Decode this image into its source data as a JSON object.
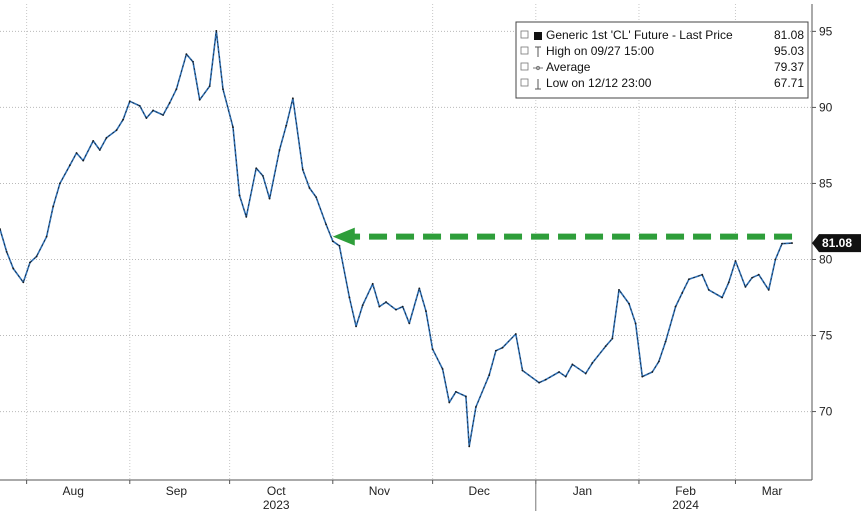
{
  "chart_data": {
    "type": "line",
    "series": [
      {
        "name": "Generic 1st 'CL' Future - Last Price",
        "color": "#2f6fb3",
        "x": [
          "2023-07-24",
          "2023-07-26",
          "2023-07-28",
          "2023-07-31",
          "2023-08-02",
          "2023-08-04",
          "2023-08-07",
          "2023-08-09",
          "2023-08-11",
          "2023-08-14",
          "2023-08-16",
          "2023-08-18",
          "2023-08-21",
          "2023-08-23",
          "2023-08-25",
          "2023-08-28",
          "2023-08-30",
          "2023-09-01",
          "2023-09-04",
          "2023-09-06",
          "2023-09-08",
          "2023-09-11",
          "2023-09-13",
          "2023-09-15",
          "2023-09-18",
          "2023-09-20",
          "2023-09-22",
          "2023-09-25",
          "2023-09-27",
          "2023-09-29",
          "2023-10-02",
          "2023-10-04",
          "2023-10-06",
          "2023-10-09",
          "2023-10-11",
          "2023-10-13",
          "2023-10-16",
          "2023-10-18",
          "2023-10-20",
          "2023-10-23",
          "2023-10-25",
          "2023-10-27",
          "2023-10-30",
          "2023-11-01",
          "2023-11-03",
          "2023-11-06",
          "2023-11-08",
          "2023-11-10",
          "2023-11-13",
          "2023-11-15",
          "2023-11-17",
          "2023-11-20",
          "2023-11-22",
          "2023-11-24",
          "2023-11-27",
          "2023-11-29",
          "2023-12-01",
          "2023-12-04",
          "2023-12-06",
          "2023-12-08",
          "2023-12-11",
          "2023-12-12",
          "2023-12-14",
          "2023-12-18",
          "2023-12-20",
          "2023-12-22",
          "2023-12-26",
          "2023-12-28",
          "2024-01-02",
          "2024-01-04",
          "2024-01-08",
          "2024-01-10",
          "2024-01-12",
          "2024-01-16",
          "2024-01-18",
          "2024-01-22",
          "2024-01-24",
          "2024-01-26",
          "2024-01-29",
          "2024-01-31",
          "2024-02-02",
          "2024-02-05",
          "2024-02-07",
          "2024-02-09",
          "2024-02-12",
          "2024-02-14",
          "2024-02-16",
          "2024-02-20",
          "2024-02-22",
          "2024-02-26",
          "2024-02-28",
          "2024-03-01",
          "2024-03-04",
          "2024-03-06",
          "2024-03-08",
          "2024-03-11",
          "2024-03-13",
          "2024-03-15",
          "2024-03-18"
        ],
        "values": [
          82.0,
          80.5,
          79.4,
          78.5,
          79.8,
          80.2,
          81.5,
          83.5,
          85.0,
          86.2,
          87.0,
          86.5,
          87.8,
          87.2,
          88.0,
          88.5,
          89.2,
          90.4,
          90.1,
          89.3,
          89.8,
          89.5,
          90.3,
          91.2,
          93.5,
          93.0,
          90.5,
          91.4,
          95.03,
          91.2,
          88.7,
          84.2,
          82.8,
          86.0,
          85.5,
          84.0,
          87.2,
          88.8,
          90.6,
          85.9,
          84.7,
          84.1,
          82.3,
          81.2,
          80.9,
          77.5,
          75.6,
          77.0,
          78.4,
          76.9,
          77.2,
          76.7,
          76.9,
          75.8,
          78.1,
          76.6,
          74.1,
          72.8,
          70.6,
          71.3,
          71.0,
          67.71,
          70.3,
          72.4,
          74.0,
          74.2,
          75.1,
          72.7,
          71.9,
          72.1,
          72.6,
          72.3,
          73.1,
          72.5,
          73.2,
          74.3,
          74.8,
          78.0,
          77.1,
          75.8,
          72.3,
          72.6,
          73.3,
          74.6,
          76.9,
          77.8,
          78.7,
          79.0,
          78.0,
          77.5,
          78.5,
          79.9,
          78.2,
          78.8,
          79.0,
          78.0,
          80.0,
          81.04,
          81.08
        ]
      }
    ],
    "average_value": 79.37,
    "yticks": [
      70,
      75,
      80,
      85,
      90,
      95
    ],
    "ylim": [
      65.5,
      96.8
    ],
    "xlim": [
      "2023-07-24",
      "2024-03-24"
    ],
    "month_ticks": [
      {
        "label": "Aug",
        "date": "2023-08-15"
      },
      {
        "label": "Sep",
        "date": "2023-09-15"
      },
      {
        "label": "Oct",
        "date": "2023-10-15"
      },
      {
        "label": "Nov",
        "date": "2023-11-15"
      },
      {
        "label": "Dec",
        "date": "2023-12-15"
      },
      {
        "label": "Jan",
        "date": "2024-01-15"
      },
      {
        "label": "Feb",
        "date": "2024-02-15"
      },
      {
        "label": "Mar",
        "date": "2024-03-12"
      }
    ],
    "year_labels": [
      {
        "label": "2023",
        "date": "2023-10-15"
      },
      {
        "label": "2024",
        "date": "2024-02-15"
      }
    ],
    "year_divider": "2024-01-01",
    "legend": {
      "placement": "top-right",
      "entries": [
        {
          "label": "Generic 1st 'CL' Future - Last Price",
          "value": "81.08",
          "marker": "square-icon"
        },
        {
          "label": "High on 09/27 15:00",
          "value": "95.03",
          "marker": "high-marker-icon"
        },
        {
          "label": "Average",
          "value": "79.37",
          "marker": "average-marker-icon"
        },
        {
          "label": "Low on 12/12 23:00",
          "value": "67.71",
          "marker": "low-marker-icon"
        }
      ]
    },
    "last_value_label": "81.08",
    "annotation": {
      "type": "dashed-arrow",
      "color": "#2e9e3a",
      "level": 81.5,
      "from_date": "2024-03-18",
      "to_date": "2023-11-01"
    },
    "grid": true,
    "y_axis_side": "right"
  }
}
